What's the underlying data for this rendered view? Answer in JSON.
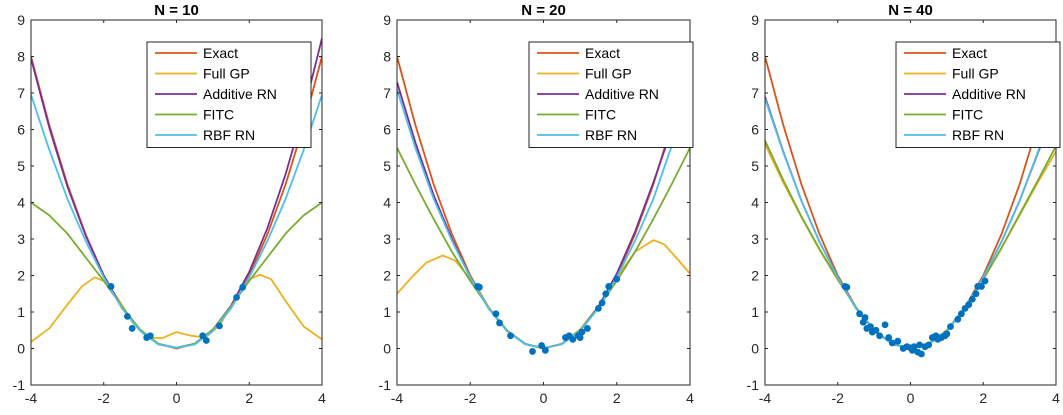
{
  "colors": {
    "Exact": "#D95319",
    "Full GP": "#EDB120",
    "Additive RN": "#7E2F8E",
    "FITC": "#77AC30",
    "RBF RN": "#4DBEEE",
    "points": "#0072BD"
  },
  "chart_data": [
    {
      "type": "line",
      "title": "N = 10",
      "xlim": [
        -4,
        4
      ],
      "ylim": [
        -1,
        9
      ],
      "xticks": [
        -4,
        -2,
        0,
        2,
        4
      ],
      "yticks": [
        -1,
        0,
        1,
        2,
        3,
        4,
        5,
        6,
        7,
        8,
        9
      ],
      "legend_position": "top-right",
      "series": [
        {
          "name": "Exact",
          "x": [
            -4,
            -3.5,
            -3,
            -2.5,
            -2,
            -1.5,
            -1,
            -0.5,
            0,
            0.5,
            1,
            1.5,
            2,
            2.5,
            3,
            3.5,
            4
          ],
          "y": [
            8,
            6.13,
            4.5,
            3.13,
            2,
            1.13,
            0.5,
            0.13,
            0,
            0.13,
            0.5,
            1.13,
            2,
            3.13,
            4.5,
            6.13,
            8
          ]
        },
        {
          "name": "Full GP",
          "x": [
            -4,
            -3.5,
            -3,
            -2.6,
            -2.25,
            -2,
            -1.6,
            -1.2,
            -0.8,
            -0.4,
            0,
            0.4,
            0.8,
            1.2,
            1.6,
            2,
            2.3,
            2.6,
            3,
            3.5,
            4
          ],
          "y": [
            0.18,
            0.55,
            1.2,
            1.7,
            1.95,
            1.85,
            1.35,
            0.7,
            0.3,
            0.28,
            0.45,
            0.35,
            0.3,
            0.65,
            1.35,
            1.9,
            2.02,
            1.9,
            1.3,
            0.6,
            0.25
          ]
        },
        {
          "name": "Additive RN",
          "x": [
            -4,
            -3.5,
            -3,
            -2.5,
            -2,
            -1.5,
            -1,
            -0.5,
            0,
            0.5,
            1,
            1.5,
            2,
            2.5,
            3,
            3.5,
            4
          ],
          "y": [
            7.95,
            6.06,
            4.44,
            3.1,
            2,
            1.12,
            0.5,
            0.12,
            0.02,
            0.13,
            0.52,
            1.17,
            2.1,
            3.3,
            4.78,
            6.5,
            8.5
          ]
        },
        {
          "name": "FITC",
          "x": [
            -4,
            -3.5,
            -3,
            -2.5,
            -2,
            -1.5,
            -1,
            -0.5,
            0,
            0.5,
            1,
            1.5,
            2,
            2.5,
            3,
            3.5,
            4
          ],
          "y": [
            4,
            3.65,
            3.15,
            2.5,
            1.85,
            1.15,
            0.52,
            0.13,
            0.02,
            0.13,
            0.52,
            1.15,
            1.85,
            2.5,
            3.15,
            3.65,
            4
          ]
        },
        {
          "name": "RBF RN",
          "x": [
            -4,
            -3.5,
            -3,
            -2.5,
            -2,
            -1.5,
            -1,
            -0.5,
            0,
            0.5,
            1,
            1.5,
            2,
            2.5,
            3,
            3.5,
            4
          ],
          "y": [
            6.95,
            5.45,
            4.1,
            2.95,
            1.95,
            1.1,
            0.48,
            0.11,
            0.02,
            0.11,
            0.48,
            1.1,
            1.95,
            2.95,
            4.1,
            5.45,
            6.95
          ]
        }
      ],
      "points": {
        "x": [
          -1.8,
          -1.35,
          -1.22,
          -0.82,
          -0.72,
          0.72,
          0.82,
          1.18,
          1.65,
          1.82
        ],
        "y": [
          1.7,
          0.88,
          0.55,
          0.3,
          0.35,
          0.35,
          0.22,
          0.62,
          1.4,
          1.68
        ]
      }
    },
    {
      "type": "line",
      "title": "N = 20",
      "xlim": [
        -4,
        4
      ],
      "ylim": [
        -1,
        9
      ],
      "xticks": [
        -4,
        -2,
        0,
        2,
        4
      ],
      "yticks": [
        -1,
        0,
        1,
        2,
        3,
        4,
        5,
        6,
        7,
        8,
        9
      ],
      "legend_position": "top-right",
      "series": [
        {
          "name": "Exact",
          "x": [
            -4,
            -3.5,
            -3,
            -2.5,
            -2,
            -1.5,
            -1,
            -0.5,
            0,
            0.5,
            1,
            1.5,
            2,
            2.5,
            3,
            3.5,
            4
          ],
          "y": [
            8,
            6.13,
            4.5,
            3.13,
            2,
            1.13,
            0.5,
            0.13,
            0,
            0.13,
            0.5,
            1.13,
            2,
            3.13,
            4.5,
            6.13,
            8
          ]
        },
        {
          "name": "Full GP",
          "x": [
            -4,
            -3.6,
            -3.2,
            -2.75,
            -2.4,
            -2,
            -1.8,
            -1.5,
            -1,
            -0.5,
            0,
            0.5,
            1,
            1.5,
            2,
            2.5,
            3,
            3.3,
            3.7,
            4
          ],
          "y": [
            1.5,
            1.95,
            2.35,
            2.55,
            2.4,
            1.9,
            1.65,
            1.12,
            0.5,
            0.12,
            0,
            0.13,
            0.52,
            1.15,
            1.95,
            2.65,
            2.97,
            2.85,
            2.4,
            2.05
          ]
        },
        {
          "name": "Additive RN",
          "x": [
            -4,
            -3.5,
            -3,
            -2.5,
            -2,
            -1.5,
            -1,
            -0.5,
            0,
            0.5,
            1,
            1.5,
            2,
            2.5,
            3,
            3.5,
            4
          ],
          "y": [
            7.3,
            5.65,
            4.2,
            3,
            1.95,
            1.1,
            0.48,
            0.12,
            0.01,
            0.12,
            0.5,
            1.15,
            2.05,
            3.2,
            4.55,
            6.0,
            7.6
          ]
        },
        {
          "name": "FITC",
          "x": [
            -4,
            -3.5,
            -3,
            -2.5,
            -2,
            -1.5,
            -1,
            -0.5,
            0,
            0.5,
            1,
            1.5,
            2,
            2.5,
            3,
            3.5,
            4
          ],
          "y": [
            5.5,
            4.5,
            3.55,
            2.65,
            1.85,
            1.12,
            0.5,
            0.12,
            0,
            0.12,
            0.5,
            1.12,
            1.85,
            2.65,
            3.55,
            4.5,
            5.5
          ]
        },
        {
          "name": "RBF RN",
          "x": [
            -4,
            -3.5,
            -3,
            -2.5,
            -2,
            -1.5,
            -1,
            -0.5,
            0,
            0.5,
            1,
            1.5,
            2,
            2.5,
            3,
            3.5,
            4
          ],
          "y": [
            7.1,
            5.5,
            4.1,
            2.95,
            1.95,
            1.1,
            0.48,
            0.12,
            0.01,
            0.12,
            0.48,
            1.1,
            1.95,
            2.95,
            4.1,
            5.55,
            7.15
          ]
        }
      ],
      "points": {
        "x": [
          -1.8,
          -1.75,
          -1.3,
          -1.2,
          -0.9,
          -0.3,
          -0.05,
          0.05,
          0.6,
          0.7,
          0.8,
          0.95,
          1.0,
          1.05,
          1.2,
          1.5,
          1.6,
          1.7,
          1.78,
          2.0
        ],
        "y": [
          1.7,
          1.68,
          0.95,
          0.7,
          0.35,
          -0.08,
          0.08,
          -0.05,
          0.3,
          0.35,
          0.25,
          0.35,
          0.3,
          0.45,
          0.55,
          1.1,
          1.25,
          1.5,
          1.7,
          1.9
        ]
      }
    },
    {
      "type": "line",
      "title": "N = 40",
      "xlim": [
        -4,
        4
      ],
      "ylim": [
        -1,
        9
      ],
      "xticks": [
        -4,
        -2,
        0,
        2,
        4
      ],
      "yticks": [
        -1,
        0,
        1,
        2,
        3,
        4,
        5,
        6,
        7,
        8,
        9
      ],
      "legend_position": "top-right",
      "series": [
        {
          "name": "Exact",
          "x": [
            -4,
            -3.5,
            -3,
            -2.5,
            -2,
            -1.5,
            -1,
            -0.5,
            0,
            0.5,
            1,
            1.5,
            2,
            2.5,
            3,
            3.5,
            4
          ],
          "y": [
            8,
            6.13,
            4.5,
            3.13,
            2,
            1.13,
            0.5,
            0.13,
            0,
            0.13,
            0.5,
            1.13,
            2,
            3.13,
            4.5,
            6.13,
            8
          ]
        },
        {
          "name": "Full GP",
          "x": [
            -4,
            -3.5,
            -3,
            -2.5,
            -2,
            -1.5,
            -1,
            -0.5,
            0,
            0.5,
            1,
            1.5,
            2,
            2.5,
            3,
            3.5,
            4
          ],
          "y": [
            5.6,
            4.55,
            3.6,
            2.7,
            1.88,
            1.12,
            0.5,
            0.12,
            0,
            0.12,
            0.5,
            1.12,
            1.88,
            2.75,
            3.65,
            4.55,
            5.4
          ]
        },
        {
          "name": "Additive RN",
          "x": [
            -4,
            -3.5,
            -3,
            -2.5,
            -2,
            -1.5,
            -1,
            -0.5,
            0,
            0.5,
            1,
            1.5,
            2,
            2.5,
            3,
            3.5,
            4
          ],
          "y": [
            6.9,
            5.4,
            4.05,
            2.92,
            1.95,
            1.1,
            0.48,
            0.12,
            0,
            0.12,
            0.48,
            1.1,
            1.95,
            2.92,
            4.05,
            5.35,
            6.65
          ]
        },
        {
          "name": "FITC",
          "x": [
            -4,
            -3.5,
            -3,
            -2.5,
            -2,
            -1.5,
            -1,
            -0.5,
            0,
            0.5,
            1,
            1.5,
            2,
            2.5,
            3,
            3.5,
            4
          ],
          "y": [
            5.7,
            4.62,
            3.62,
            2.72,
            1.9,
            1.13,
            0.5,
            0.12,
            0,
            0.12,
            0.5,
            1.13,
            1.9,
            2.75,
            3.68,
            4.6,
            5.55
          ]
        },
        {
          "name": "RBF RN",
          "x": [
            -4,
            -3.5,
            -3,
            -2.5,
            -2,
            -1.5,
            -1,
            -0.5,
            0,
            0.5,
            1,
            1.5,
            2,
            2.5,
            3,
            3.5,
            4
          ],
          "y": [
            6.85,
            5.38,
            4.05,
            2.92,
            1.95,
            1.1,
            0.48,
            0.12,
            0,
            0.12,
            0.48,
            1.1,
            1.95,
            2.92,
            4.05,
            5.38,
            6.85
          ]
        }
      ],
      "points": {
        "x": [
          -1.8,
          -1.75,
          -1.4,
          -1.3,
          -1.25,
          -1.2,
          -1.1,
          -1.05,
          -0.95,
          -0.85,
          -0.7,
          -0.6,
          -0.5,
          -0.35,
          -0.2,
          -0.1,
          0,
          0.05,
          0.1,
          0.2,
          0.25,
          0.3,
          0.4,
          0.5,
          0.6,
          0.7,
          0.75,
          0.85,
          0.95,
          1.0,
          1.1,
          1.3,
          1.4,
          1.5,
          1.6,
          1.7,
          1.8,
          1.85,
          1.95,
          2.05
        ],
        "y": [
          1.7,
          1.68,
          0.95,
          0.72,
          0.85,
          0.55,
          0.6,
          0.45,
          0.5,
          0.35,
          0.65,
          0.3,
          0.15,
          0.2,
          0.0,
          0.05,
          0.02,
          -0.05,
          0.05,
          -0.1,
          0.1,
          -0.15,
          0.05,
          0.1,
          0.3,
          0.35,
          0.25,
          0.3,
          0.35,
          0.4,
          0.6,
          0.8,
          0.95,
          1.1,
          1.2,
          1.35,
          1.5,
          1.7,
          1.7,
          1.85
        ]
      }
    }
  ]
}
